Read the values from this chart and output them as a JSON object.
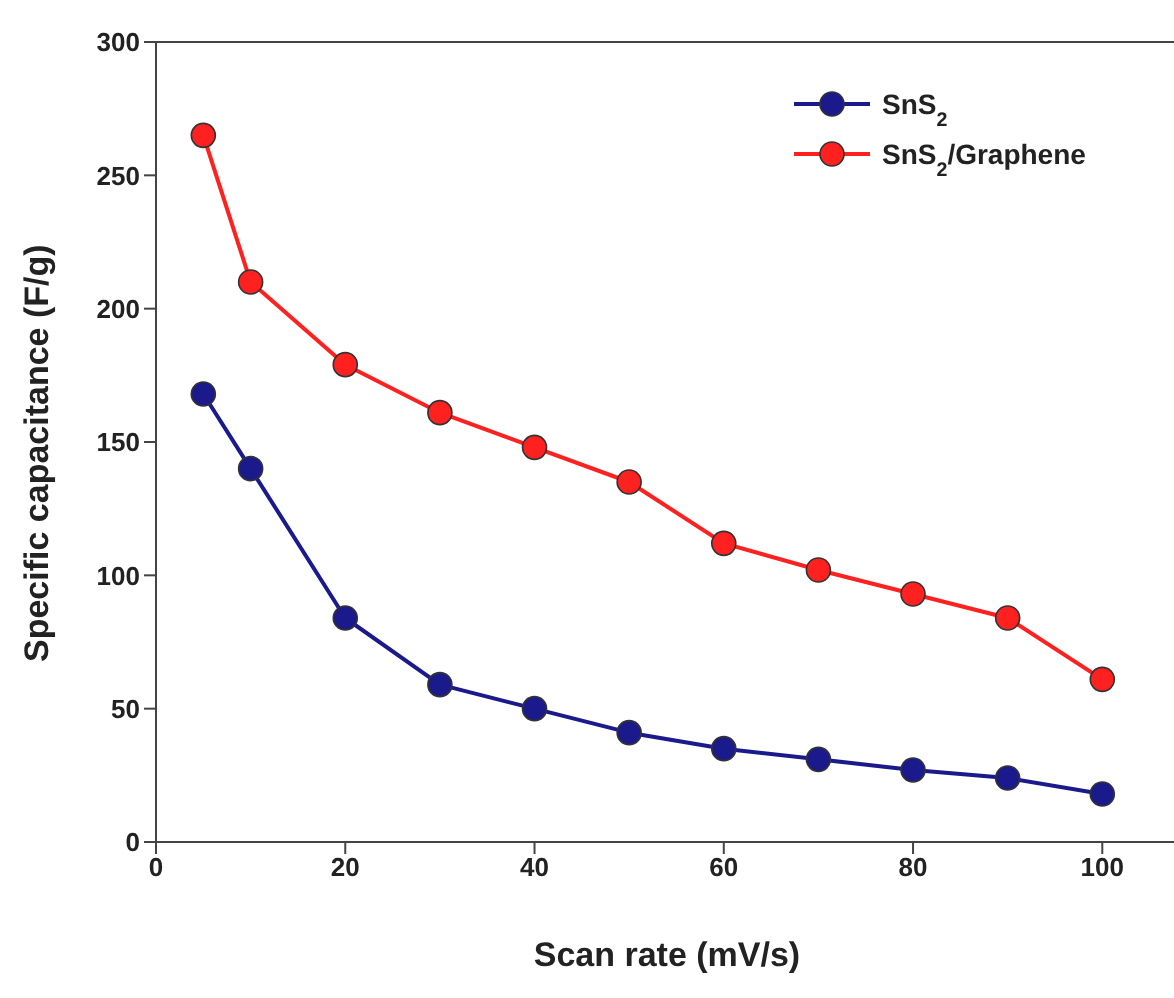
{
  "chart_data": {
    "type": "line",
    "xlabel": "Scan rate (mV/s)",
    "ylabel": "Specific capacitance (F/g)",
    "x": [
      5,
      10,
      20,
      30,
      40,
      50,
      60,
      70,
      80,
      90,
      100
    ],
    "xlim": [
      0,
      108
    ],
    "xticks": [
      0,
      20,
      40,
      60,
      80,
      100
    ],
    "ylim": [
      0,
      300
    ],
    "yticks": [
      0,
      50,
      100,
      150,
      200,
      250,
      300
    ],
    "marker": "circle",
    "line_style": "solid",
    "legend": "top right",
    "grid": false,
    "series": [
      {
        "name": "SnS$_{2}$",
        "color": "#1a1a8c",
        "values": [
          168,
          140,
          84,
          59,
          50,
          41,
          35,
          31,
          27,
          24,
          18
        ]
      },
      {
        "name": "SnS$_{2}$/Graphene",
        "color": "#ff2020",
        "values": [
          265,
          210,
          179,
          161,
          148,
          135,
          112,
          102,
          93,
          84,
          61
        ]
      }
    ]
  }
}
